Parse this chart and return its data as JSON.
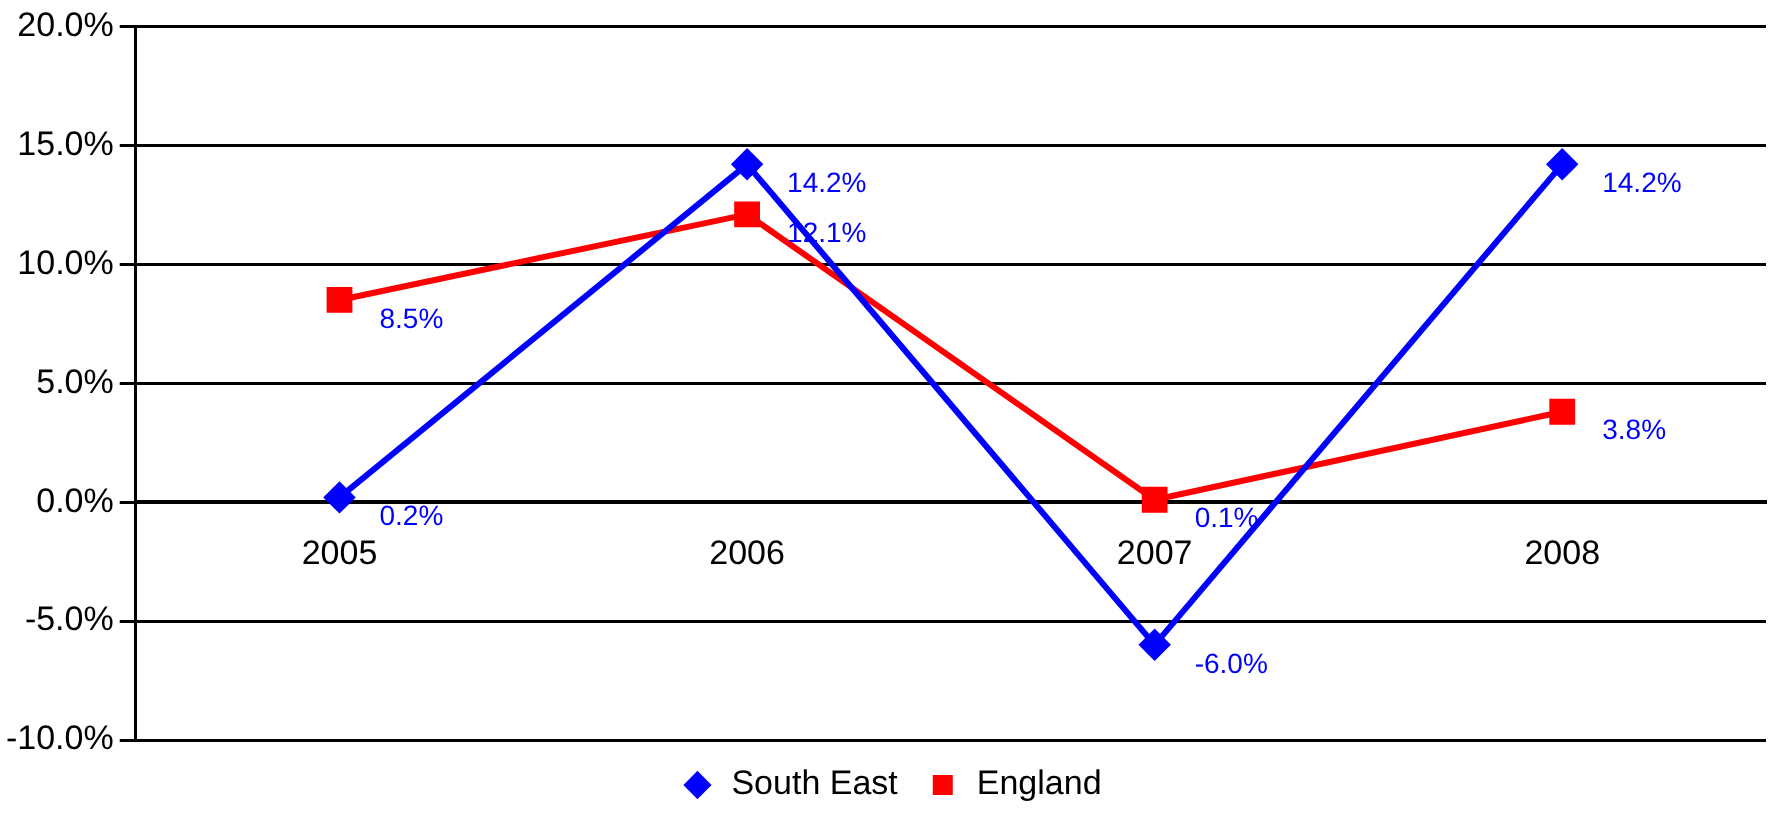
{
  "chart_data": {
    "type": "line",
    "categories": [
      "2005",
      "2006",
      "2007",
      "2008"
    ],
    "series": [
      {
        "name": "South East",
        "color": "#0000ff",
        "marker": "diamond",
        "values": [
          0.2,
          14.2,
          -6.0,
          14.2
        ],
        "value_labels": [
          "0.2%",
          "14.2%",
          "-6.0%",
          "14.2%"
        ]
      },
      {
        "name": "England",
        "color": "#ff0000",
        "marker": "square",
        "values": [
          8.5,
          12.1,
          0.1,
          3.8
        ],
        "value_labels": [
          "8.5%",
          "12.1%",
          "0.1%",
          "3.8%"
        ]
      }
    ],
    "ylim": [
      -10,
      20
    ],
    "yticks": [
      {
        "value": -10,
        "label": "-10.0%"
      },
      {
        "value": -5,
        "label": "-5.0%"
      },
      {
        "value": 0,
        "label": "0.0%"
      },
      {
        "value": 5,
        "label": "5.0%"
      },
      {
        "value": 10,
        "label": "10.0%"
      },
      {
        "value": 15,
        "label": "15.0%"
      },
      {
        "value": 20,
        "label": "20.0%"
      }
    ],
    "grid": "y",
    "legend": "bottom",
    "line_style": "solid"
  }
}
